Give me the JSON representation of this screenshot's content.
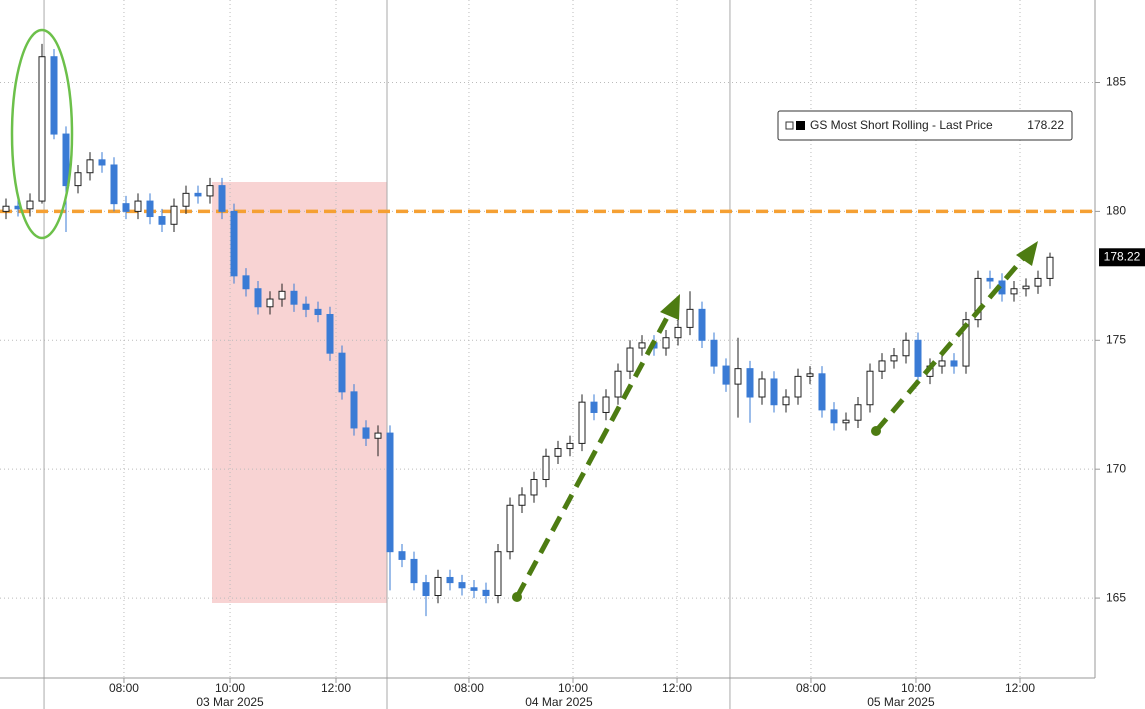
{
  "chart_data": {
    "type": "candlestick",
    "x": [
      0,
      1,
      2,
      3,
      4,
      5,
      6,
      7,
      8,
      9,
      10,
      11,
      12,
      13,
      14,
      15,
      16,
      17,
      18,
      19,
      20,
      21,
      22,
      23,
      24,
      25,
      26,
      27,
      28,
      29,
      30,
      31,
      32,
      33,
      34,
      35,
      36,
      37,
      38,
      39,
      40,
      41,
      42,
      43,
      44,
      45,
      46,
      47,
      48,
      49,
      50,
      51,
      52,
      53,
      54,
      55,
      56,
      57,
      58,
      59,
      60,
      61,
      62,
      63,
      64,
      65,
      66,
      67,
      68,
      69,
      70,
      71,
      72,
      73,
      74,
      75,
      76,
      77,
      78,
      79,
      80,
      81,
      82,
      83,
      84,
      85,
      86,
      87
    ],
    "series": [
      {
        "name": "GS Most Short Rolling - Last Price",
        "up_color": "#ffffff",
        "down_color": "#3a7bd5",
        "open": [
          180.0,
          180.2,
          180.1,
          180.4,
          186.0,
          183.0,
          181.0,
          181.5,
          182.0,
          181.8,
          180.3,
          180.0,
          180.4,
          179.8,
          179.5,
          180.2,
          180.7,
          180.6,
          181.0,
          180.0,
          177.5,
          177.0,
          176.3,
          176.6,
          176.9,
          176.4,
          176.2,
          176.0,
          174.5,
          173.0,
          171.6,
          171.2,
          171.4,
          166.8,
          166.5,
          165.6,
          165.1,
          165.8,
          165.6,
          165.4,
          165.3,
          165.1,
          166.8,
          168.6,
          169.0,
          169.6,
          170.5,
          170.8,
          171.0,
          172.6,
          172.2,
          172.8,
          173.8,
          174.7,
          174.9,
          174.7,
          175.1,
          175.5,
          176.2,
          175.0,
          174.0,
          173.3,
          173.9,
          172.8,
          173.5,
          172.5,
          172.8,
          173.6,
          173.7,
          172.3,
          171.8,
          171.9,
          172.5,
          173.8,
          174.2,
          174.4,
          175.0,
          173.6,
          174.0,
          174.2,
          174.0,
          175.8,
          177.4,
          177.3,
          176.8,
          177.0,
          177.1,
          177.4
        ],
        "high": [
          180.5,
          180.5,
          180.7,
          186.5,
          186.3,
          183.3,
          181.8,
          182.3,
          182.3,
          182.1,
          180.6,
          180.7,
          180.7,
          180.1,
          180.5,
          181.0,
          181.0,
          181.3,
          181.3,
          180.3,
          177.8,
          177.3,
          176.9,
          177.2,
          177.2,
          176.7,
          176.5,
          176.3,
          174.8,
          173.3,
          171.9,
          171.7,
          171.7,
          167.1,
          166.8,
          165.9,
          166.1,
          166.1,
          165.9,
          165.7,
          165.6,
          167.1,
          168.9,
          169.3,
          169.9,
          170.8,
          171.1,
          171.3,
          172.9,
          172.9,
          173.1,
          174.1,
          175.0,
          175.2,
          175.2,
          175.4,
          175.8,
          176.9,
          176.5,
          175.3,
          174.3,
          175.1,
          174.2,
          173.8,
          173.8,
          173.1,
          173.9,
          174.0,
          174.0,
          172.6,
          172.2,
          172.8,
          174.1,
          174.5,
          174.7,
          175.3,
          175.3,
          174.3,
          174.5,
          174.5,
          176.1,
          177.7,
          177.7,
          177.6,
          177.3,
          177.4,
          177.7,
          178.4
        ],
        "low": [
          179.7,
          179.8,
          179.8,
          180.3,
          182.8,
          179.2,
          180.7,
          181.2,
          181.5,
          180.0,
          179.7,
          179.7,
          179.5,
          179.2,
          179.2,
          179.9,
          180.3,
          180.3,
          179.7,
          177.2,
          176.7,
          176.0,
          176.0,
          176.3,
          176.1,
          175.9,
          175.7,
          174.2,
          172.7,
          171.3,
          170.9,
          170.5,
          165.3,
          166.2,
          165.3,
          164.3,
          164.8,
          165.3,
          165.1,
          165.0,
          164.8,
          164.8,
          166.5,
          168.3,
          168.7,
          169.3,
          170.2,
          170.5,
          170.7,
          171.9,
          171.9,
          172.5,
          173.5,
          174.4,
          174.4,
          174.4,
          174.8,
          175.2,
          174.7,
          173.7,
          173.0,
          172.0,
          171.8,
          172.5,
          172.2,
          172.2,
          172.5,
          173.3,
          172.0,
          171.5,
          171.5,
          171.6,
          172.2,
          173.5,
          173.9,
          174.1,
          173.3,
          173.3,
          173.7,
          173.7,
          173.7,
          175.5,
          177.0,
          176.5,
          176.5,
          176.7,
          176.8,
          177.1
        ],
        "close": [
          180.2,
          180.1,
          180.4,
          186.0,
          183.0,
          181.0,
          181.5,
          182.0,
          181.8,
          180.3,
          180.0,
          180.4,
          179.8,
          179.5,
          180.2,
          180.7,
          180.6,
          181.0,
          180.0,
          177.5,
          177.0,
          176.3,
          176.6,
          176.9,
          176.4,
          176.2,
          176.0,
          174.5,
          173.0,
          171.6,
          171.2,
          171.4,
          166.8,
          166.5,
          165.6,
          165.1,
          165.8,
          165.6,
          165.4,
          165.3,
          165.1,
          166.8,
          168.6,
          169.0,
          169.6,
          170.5,
          170.8,
          171.0,
          172.6,
          172.2,
          172.8,
          173.8,
          174.7,
          174.9,
          174.7,
          175.1,
          175.5,
          176.2,
          175.0,
          174.0,
          173.3,
          173.9,
          172.8,
          173.5,
          172.5,
          172.8,
          173.6,
          173.7,
          172.3,
          171.8,
          171.9,
          172.5,
          173.8,
          174.2,
          174.4,
          175.0,
          173.6,
          174.0,
          174.2,
          174.0,
          175.8,
          177.4,
          177.3,
          176.8,
          177.0,
          177.1,
          177.4,
          178.22
        ]
      }
    ],
    "xlim": [
      -0.5,
      90.75
    ],
    "ylim": [
      161.9,
      188.2
    ],
    "yticks": [
      165,
      170,
      175,
      180,
      185
    ],
    "xticks": [
      {
        "value": 9.83,
        "label": "08:00"
      },
      {
        "value": 18.67,
        "label": "10:00"
      },
      {
        "value": 27.5,
        "label": "12:00"
      },
      {
        "value": 38.58,
        "label": "08:00"
      },
      {
        "value": 47.25,
        "label": "10:00"
      },
      {
        "value": 55.92,
        "label": "12:00"
      },
      {
        "value": 67.08,
        "label": "08:00"
      },
      {
        "value": 75.83,
        "label": "10:00"
      },
      {
        "value": 84.5,
        "label": "12:00"
      }
    ],
    "day_breaks": [
      3.17,
      31.75,
      60.33
    ],
    "date_labels": [
      {
        "value": 18.67,
        "label": "03 Mar 2025"
      },
      {
        "value": 46.08,
        "label": "04 Mar 2025"
      },
      {
        "value": 74.58,
        "label": "05 Mar 2025"
      }
    ],
    "reference_line": {
      "value": 180,
      "color": "#f5a033"
    },
    "grid": true
  }
}
